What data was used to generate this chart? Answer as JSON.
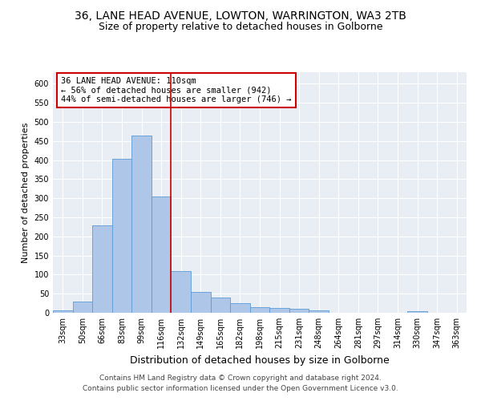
{
  "title_line1": "36, LANE HEAD AVENUE, LOWTON, WARRINGTON, WA3 2TB",
  "title_line2": "Size of property relative to detached houses in Golborne",
  "xlabel": "Distribution of detached houses by size in Golborne",
  "ylabel": "Number of detached properties",
  "bar_color": "#aec6e8",
  "bar_edge_color": "#5b9bd5",
  "categories": [
    "33sqm",
    "50sqm",
    "66sqm",
    "83sqm",
    "99sqm",
    "116sqm",
    "132sqm",
    "149sqm",
    "165sqm",
    "182sqm",
    "198sqm",
    "215sqm",
    "231sqm",
    "248sqm",
    "264sqm",
    "281sqm",
    "297sqm",
    "314sqm",
    "330sqm",
    "347sqm",
    "363sqm"
  ],
  "values": [
    7,
    30,
    229,
    403,
    464,
    305,
    110,
    54,
    40,
    26,
    14,
    12,
    10,
    7,
    0,
    0,
    0,
    0,
    5,
    0,
    0
  ],
  "vline_x": 5.5,
  "vline_color": "#cc0000",
  "annotation_text": "36 LANE HEAD AVENUE: 110sqm\n← 56% of detached houses are smaller (942)\n44% of semi-detached houses are larger (746) →",
  "annotation_box_color": "white",
  "annotation_edge_color": "#cc0000",
  "ylim": [
    0,
    630
  ],
  "yticks": [
    0,
    50,
    100,
    150,
    200,
    250,
    300,
    350,
    400,
    450,
    500,
    550,
    600
  ],
  "background_color": "#e8eef4",
  "footer_line1": "Contains HM Land Registry data © Crown copyright and database right 2024.",
  "footer_line2": "Contains public sector information licensed under the Open Government Licence v3.0.",
  "title_fontsize": 10,
  "subtitle_fontsize": 9,
  "ylabel_fontsize": 8,
  "xlabel_fontsize": 9,
  "annotation_fontsize": 7.5,
  "tick_fontsize": 7,
  "footer_fontsize": 6.5
}
